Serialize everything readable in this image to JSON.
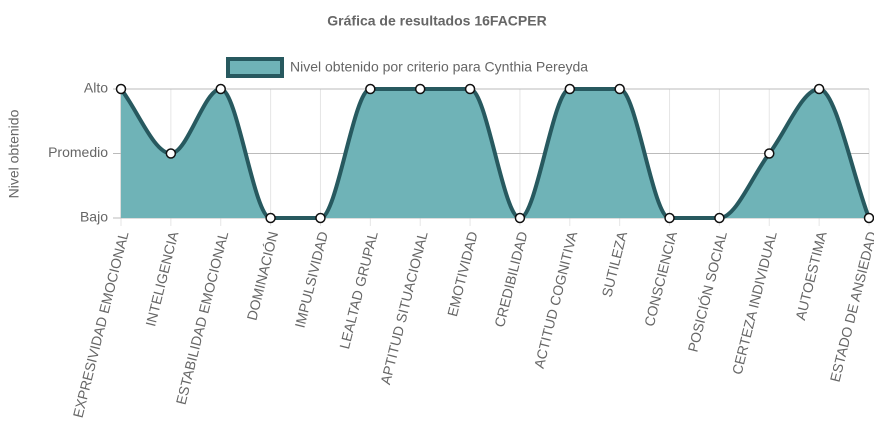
{
  "chart_data": {
    "type": "area",
    "title": "Gráfica de resultados 16FACPER",
    "y_label": "Nivel obtenido",
    "categories": [
      "EXPRESIVIDAD EMOCIONAL",
      "INTELIGENCIA",
      "ESTABILIDAD EMOCIONAL",
      "DOMINACIÓN",
      "IMPULSIVIDAD",
      "LEALTAD GRUPAL",
      "APTITUD SITUACIONAL",
      "EMOTIVIDAD",
      "CREDIBILIDAD",
      "ACTITUD COGNITIVA",
      "SUTILEZA",
      "CONSCIENCIA",
      "POSICIÓN SOCIAL",
      "CERTEZA INDIVIDUAL",
      "AUTOESTIMA",
      "ESTADO DE ANSIEDAD"
    ],
    "series": [
      {
        "name": "Nivel obtenido por criterio para Cynthia Pereyda",
        "color": "#27595f",
        "fill": "#6fb3b7",
        "values": [
          2,
          1,
          2,
          0,
          0,
          2,
          2,
          2,
          0,
          2,
          2,
          0,
          0,
          1,
          2,
          0
        ]
      }
    ],
    "ylim": [
      0,
      2
    ],
    "yticks": [
      {
        "value": 0,
        "label": "Bajo"
      },
      {
        "value": 1,
        "label": "Promedio"
      },
      {
        "value": 2,
        "label": "Alto"
      }
    ],
    "grid": true,
    "legend": "top"
  }
}
